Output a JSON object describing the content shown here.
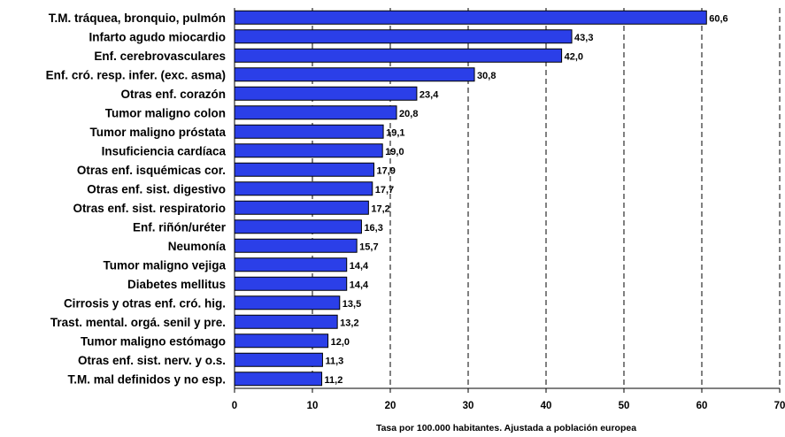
{
  "chart_data": {
    "type": "bar",
    "orientation": "horizontal",
    "categories": [
      "T.M. tráquea, bronquio,  pulmón",
      "Infarto agudo miocardio",
      "Enf. cerebrovasculares",
      "Enf. cró. resp. infer. (exc. asma)",
      "Otras enf. corazón",
      "Tumor maligno colon",
      "Tumor maligno próstata",
      "Insuficiencia cardíaca",
      "Otras enf. isquémicas cor.",
      "Otras enf. sist. digestivo",
      "Otras enf. sist. respiratorio",
      "Enf. riñón/uréter",
      "Neumonía",
      "Tumor maligno vejiga",
      "Diabetes mellitus",
      "Cirrosis y otras enf. cró. hig.",
      "Trast. mental. orgá. senil y pre.",
      "Tumor maligno estómago",
      "Otras enf. sist. nerv. y o.s.",
      "T.M. mal definidos y no esp."
    ],
    "values": [
      60.6,
      43.3,
      42.0,
      30.8,
      23.4,
      20.8,
      19.1,
      19.0,
      17.9,
      17.7,
      17.2,
      16.3,
      15.7,
      14.4,
      14.4,
      13.5,
      13.2,
      12.0,
      11.3,
      11.2
    ],
    "value_labels": [
      "60,6",
      "43,3",
      "42,0",
      "30,8",
      "23,4",
      "20,8",
      "19,1",
      "19,0",
      "17,9",
      "17,7",
      "17,2",
      "16,3",
      "15,7",
      "14,4",
      "14,4",
      "13,5",
      "13,2",
      "12,0",
      "11,3",
      "11,2"
    ],
    "xlabel": "Tasa por 100.000 habitantes. Ajustada a población europea",
    "xlim": [
      0,
      70
    ],
    "xticks": [
      0,
      10,
      20,
      30,
      40,
      50,
      60,
      70
    ],
    "grid": "vertical dashed",
    "colors": {
      "bar": "#2B3FE8",
      "bar_border": "#000000",
      "grid": "#000000"
    }
  }
}
